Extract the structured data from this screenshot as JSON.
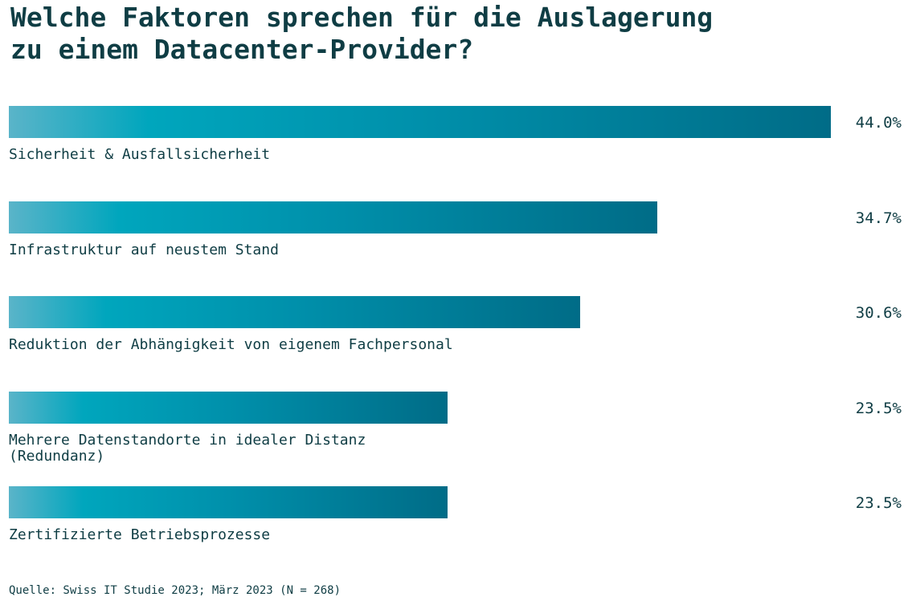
{
  "title_line1": "Welche Faktoren sprechen für die Auslagerung",
  "title_line2": "zu einem Datacenter-Provider?",
  "source": "Quelle: Swiss IT Studie 2023; März 2023 (N = 268)",
  "colors": {
    "text": "#0f3d44",
    "bar_start": "#5ab4c9",
    "bar_mid": "#00a6bd",
    "bar_end": "#006c87"
  },
  "chart_data": {
    "type": "bar",
    "orientation": "horizontal",
    "title": "Welche Faktoren sprechen für die Auslagerung zu einem Datacenter-Provider?",
    "xlabel": "",
    "ylabel": "",
    "xlim": [
      0,
      44.0
    ],
    "categories": [
      "Sicherheit & Ausfallsicherheit",
      "Infrastruktur auf neustem Stand",
      "Reduktion der Abhängigkeit von eigenem Fachpersonal",
      "Mehrere Datenstandorte in idealer Distanz\n(Redundanz)",
      "Zertifizierte Betriebsprozesse"
    ],
    "values": [
      44.0,
      34.7,
      30.6,
      23.5,
      23.5
    ],
    "value_labels": [
      "44.0%",
      "34.7%",
      "30.6%",
      "23.5%",
      "23.5%"
    ],
    "grid": false,
    "legend": "none"
  }
}
